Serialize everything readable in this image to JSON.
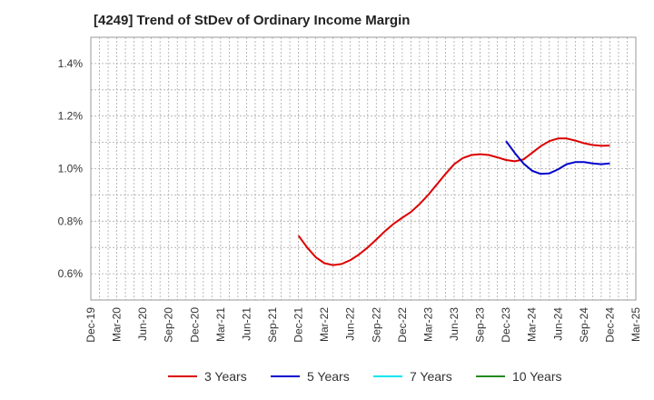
{
  "chart_data": {
    "type": "line",
    "title": "[4249]  Trend of StDev of Ordinary Income Margin",
    "xlabel": "",
    "ylabel": "",
    "x_ticks": [
      "Dec-19",
      "Mar-20",
      "Jun-20",
      "Sep-20",
      "Dec-20",
      "Mar-21",
      "Jun-21",
      "Sep-21",
      "Dec-21",
      "Mar-22",
      "Jun-22",
      "Sep-22",
      "Dec-22",
      "Mar-23",
      "Jun-23",
      "Sep-23",
      "Dec-23",
      "Mar-24",
      "Jun-24",
      "Sep-24",
      "Dec-24",
      "Mar-25"
    ],
    "y_ticks": [
      "0.6%",
      "0.8%",
      "1.0%",
      "1.2%",
      "1.4%"
    ],
    "ylim": [
      0.5,
      1.5
    ],
    "grid": true,
    "legend_position": "bottom",
    "series": [
      {
        "name": "3 Years",
        "color": "#dd0000",
        "points": [
          [
            "Dec-21",
            0.745
          ],
          [
            "Jan-22",
            0.7
          ],
          [
            "Feb-22",
            0.663
          ],
          [
            "Mar-22",
            0.64
          ],
          [
            "Apr-22",
            0.633
          ],
          [
            "May-22",
            0.637
          ],
          [
            "Jun-22",
            0.652
          ],
          [
            "Jul-22",
            0.673
          ],
          [
            "Aug-22",
            0.7
          ],
          [
            "Sep-22",
            0.73
          ],
          [
            "Oct-22",
            0.762
          ],
          [
            "Nov-22",
            0.79
          ],
          [
            "Dec-22",
            0.813
          ],
          [
            "Jan-23",
            0.835
          ],
          [
            "Feb-23",
            0.865
          ],
          [
            "Mar-23",
            0.9
          ],
          [
            "Apr-23",
            0.94
          ],
          [
            "May-23",
            0.98
          ],
          [
            "Jun-23",
            1.017
          ],
          [
            "Jul-23",
            1.04
          ],
          [
            "Aug-23",
            1.052
          ],
          [
            "Sep-23",
            1.055
          ],
          [
            "Oct-23",
            1.052
          ],
          [
            "Nov-23",
            1.043
          ],
          [
            "Dec-23",
            1.033
          ],
          [
            "Jan-24",
            1.028
          ],
          [
            "Feb-24",
            1.035
          ],
          [
            "Mar-24",
            1.06
          ],
          [
            "Apr-24",
            1.085
          ],
          [
            "May-24",
            1.105
          ],
          [
            "Jun-24",
            1.115
          ],
          [
            "Jul-24",
            1.115
          ],
          [
            "Aug-24",
            1.107
          ],
          [
            "Sep-24",
            1.097
          ],
          [
            "Oct-24",
            1.09
          ],
          [
            "Nov-24",
            1.087
          ],
          [
            "Dec-24",
            1.088
          ]
        ]
      },
      {
        "name": "5 Years",
        "color": "#0000cc",
        "points": [
          [
            "Dec-23",
            1.105
          ],
          [
            "Jan-24",
            1.06
          ],
          [
            "Feb-24",
            1.02
          ],
          [
            "Mar-24",
            0.992
          ],
          [
            "Apr-24",
            0.98
          ],
          [
            "May-24",
            0.982
          ],
          [
            "Jun-24",
            0.997
          ],
          [
            "Jul-24",
            1.017
          ],
          [
            "Aug-24",
            1.025
          ],
          [
            "Sep-24",
            1.025
          ],
          [
            "Oct-24",
            1.02
          ],
          [
            "Nov-24",
            1.017
          ],
          [
            "Dec-24",
            1.02
          ]
        ]
      },
      {
        "name": "7 Years",
        "color": "#00e5ee",
        "points": []
      },
      {
        "name": "10 Years",
        "color": "#228b22",
        "points": []
      }
    ]
  }
}
